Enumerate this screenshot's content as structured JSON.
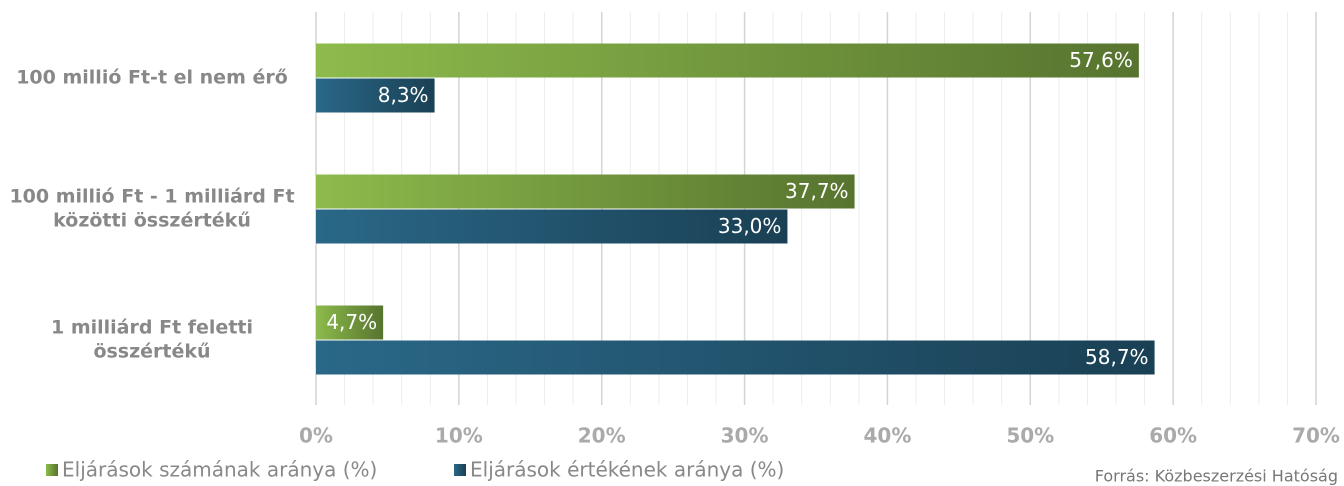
{
  "chart_data": {
    "type": "barh",
    "categories": [
      "100 millió Ft-t el nem érő",
      "100 millió Ft - 1 milliárd Ft\nközötti összértékű",
      "1 milliárd Ft feletti\nösszértékű"
    ],
    "series": [
      {
        "name": "Eljárások számának aránya (%)",
        "color": "#8dbb4c",
        "values": [
          57.6,
          37.7,
          4.7
        ],
        "value_labels": [
          "57,6%",
          "37,7%",
          "4,7%"
        ]
      },
      {
        "name": "Eljárások értékének aránya (%)",
        "color": "#2a6888",
        "values": [
          8.3,
          33.0,
          58.7
        ],
        "value_labels": [
          "8,3%",
          "33,0%",
          "58,7%"
        ]
      }
    ],
    "xlim": [
      0,
      70
    ],
    "xticks": [
      {
        "value": 0,
        "label": "0%"
      },
      {
        "value": 10,
        "label": "10%"
      },
      {
        "value": 20,
        "label": "20%"
      },
      {
        "value": 30,
        "label": "30%"
      },
      {
        "value": 40,
        "label": "40%"
      },
      {
        "value": 50,
        "label": "50%"
      },
      {
        "value": 60,
        "label": "60%"
      },
      {
        "value": 70,
        "label": "70%"
      }
    ],
    "xminorticks": [
      2,
      4,
      6,
      8,
      12,
      14,
      16,
      18,
      22,
      24,
      26,
      28,
      32,
      34,
      36,
      38,
      42,
      44,
      46,
      48,
      52,
      54,
      56,
      58,
      62,
      64,
      66,
      68
    ],
    "grid": true,
    "source": "Forrás: Közbeszerzési Hatóság"
  }
}
